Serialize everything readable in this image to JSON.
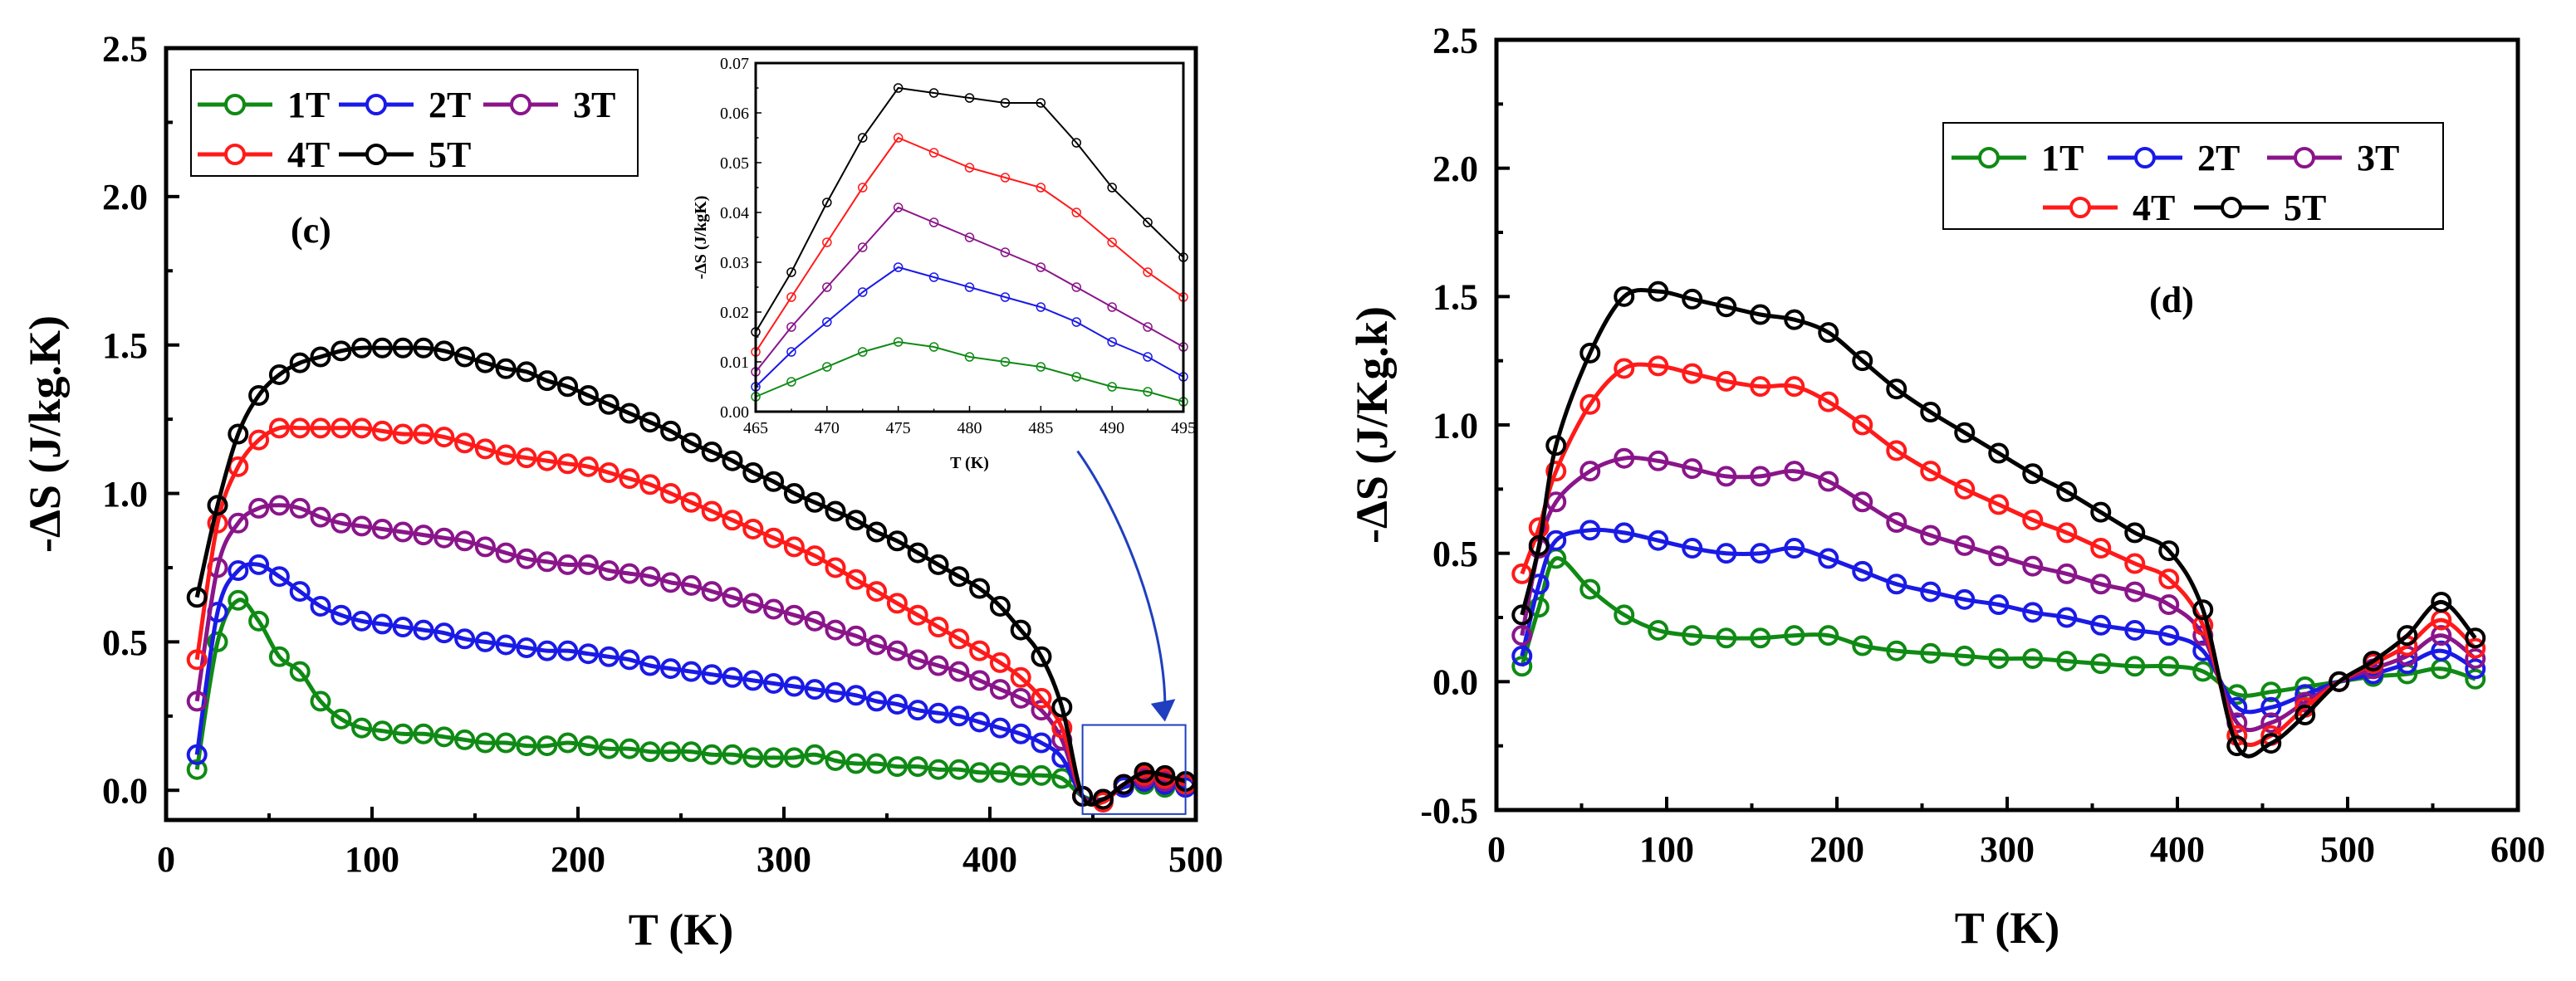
{
  "colors": {
    "1T": "#0f8a14",
    "2T": "#1a1ae6",
    "3T": "#8a158a",
    "4T": "#ff1a1a",
    "5T": "#000000",
    "zoom_box": "#1f3fbf"
  },
  "chart_data": [
    {
      "id": "c",
      "type": "line",
      "panel_label": "(c)",
      "xlabel": "T (K)",
      "ylabel": "-ΔS (J/kg.K)",
      "xlim": [
        0,
        500
      ],
      "ylim": [
        -0.1,
        2.5
      ],
      "xticks": [
        "0",
        "100",
        "200",
        "300",
        "400",
        "500"
      ],
      "yticks": [
        "0.0",
        "0.5",
        "1.0",
        "1.5",
        "2.0",
        "2.5"
      ],
      "legend": [
        "1T",
        "2T",
        "3T",
        "4T",
        "5T"
      ],
      "legend_position": "top-left",
      "x": [
        15,
        25,
        35,
        45,
        55,
        65,
        75,
        85,
        95,
        105,
        115,
        125,
        135,
        145,
        155,
        165,
        175,
        185,
        195,
        205,
        215,
        225,
        235,
        245,
        255,
        265,
        275,
        285,
        295,
        305,
        315,
        325,
        335,
        345,
        355,
        365,
        375,
        385,
        395,
        405,
        415,
        425,
        435,
        445,
        455,
        465,
        475,
        485,
        495
      ],
      "series": [
        {
          "name": "1T",
          "values": [
            0.07,
            0.5,
            0.64,
            0.57,
            0.45,
            0.4,
            0.3,
            0.24,
            0.21,
            0.2,
            0.19,
            0.19,
            0.18,
            0.17,
            0.16,
            0.16,
            0.15,
            0.15,
            0.16,
            0.15,
            0.14,
            0.14,
            0.13,
            0.13,
            0.13,
            0.12,
            0.12,
            0.11,
            0.11,
            0.11,
            0.12,
            0.1,
            0.09,
            0.09,
            0.08,
            0.08,
            0.07,
            0.07,
            0.06,
            0.06,
            0.05,
            0.05,
            0.04,
            -0.02,
            -0.03,
            0.01,
            0.02,
            0.01,
            0.01
          ]
        },
        {
          "name": "2T",
          "values": [
            0.12,
            0.6,
            0.74,
            0.76,
            0.72,
            0.67,
            0.62,
            0.59,
            0.57,
            0.56,
            0.55,
            0.54,
            0.53,
            0.51,
            0.5,
            0.49,
            0.48,
            0.47,
            0.47,
            0.46,
            0.45,
            0.44,
            0.42,
            0.41,
            0.4,
            0.39,
            0.38,
            0.37,
            0.36,
            0.35,
            0.34,
            0.33,
            0.32,
            0.3,
            0.29,
            0.27,
            0.26,
            0.25,
            0.23,
            0.21,
            0.19,
            0.16,
            0.11,
            -0.02,
            -0.03,
            0.01,
            0.03,
            0.02,
            0.01
          ]
        },
        {
          "name": "3T",
          "values": [
            0.3,
            0.75,
            0.9,
            0.95,
            0.96,
            0.95,
            0.92,
            0.9,
            0.89,
            0.88,
            0.87,
            0.86,
            0.85,
            0.84,
            0.82,
            0.8,
            0.78,
            0.77,
            0.76,
            0.76,
            0.74,
            0.73,
            0.72,
            0.7,
            0.69,
            0.67,
            0.65,
            0.63,
            0.61,
            0.59,
            0.57,
            0.54,
            0.52,
            0.49,
            0.47,
            0.44,
            0.42,
            0.4,
            0.37,
            0.34,
            0.31,
            0.27,
            0.17,
            -0.02,
            -0.03,
            0.02,
            0.04,
            0.03,
            0.02
          ]
        },
        {
          "name": "4T",
          "values": [
            0.44,
            0.9,
            1.09,
            1.18,
            1.22,
            1.22,
            1.22,
            1.22,
            1.22,
            1.21,
            1.2,
            1.2,
            1.19,
            1.17,
            1.15,
            1.13,
            1.12,
            1.11,
            1.1,
            1.09,
            1.07,
            1.05,
            1.03,
            1.0,
            0.97,
            0.94,
            0.91,
            0.88,
            0.85,
            0.82,
            0.79,
            0.75,
            0.71,
            0.67,
            0.63,
            0.59,
            0.55,
            0.51,
            0.47,
            0.43,
            0.38,
            0.31,
            0.21,
            -0.02,
            -0.04,
            0.02,
            0.05,
            0.04,
            0.02
          ]
        },
        {
          "name": "5T",
          "values": [
            0.65,
            0.96,
            1.2,
            1.33,
            1.4,
            1.44,
            1.46,
            1.48,
            1.49,
            1.49,
            1.49,
            1.49,
            1.48,
            1.46,
            1.44,
            1.42,
            1.41,
            1.38,
            1.36,
            1.33,
            1.3,
            1.27,
            1.24,
            1.21,
            1.17,
            1.14,
            1.11,
            1.07,
            1.04,
            1.0,
            0.97,
            0.94,
            0.91,
            0.87,
            0.84,
            0.8,
            0.76,
            0.72,
            0.68,
            0.62,
            0.54,
            0.45,
            0.28,
            -0.02,
            -0.03,
            0.02,
            0.06,
            0.05,
            0.03
          ]
        }
      ],
      "inset": {
        "xlabel": "T (K)",
        "ylabel": "-ΔS (J/kgK)",
        "xlim": [
          465,
          495
        ],
        "ylim": [
          0,
          0.07
        ],
        "xticks": [
          "465",
          "470",
          "475",
          "480",
          "485",
          "490",
          "495"
        ],
        "yticks": [
          "0.00",
          "0.01",
          "0.02",
          "0.03",
          "0.04",
          "0.05",
          "0.06",
          "0.07"
        ],
        "x": [
          465,
          467.5,
          470,
          472.5,
          475,
          477.5,
          480,
          482.5,
          485,
          487.5,
          490,
          492.5,
          495
        ],
        "series": [
          {
            "name": "1T",
            "values": [
              0.003,
              0.006,
              0.009,
              0.012,
              0.014,
              0.013,
              0.011,
              0.01,
              0.009,
              0.007,
              0.005,
              0.004,
              0.002
            ]
          },
          {
            "name": "2T",
            "values": [
              0.005,
              0.012,
              0.018,
              0.024,
              0.029,
              0.027,
              0.025,
              0.023,
              0.021,
              0.018,
              0.014,
              0.011,
              0.007
            ]
          },
          {
            "name": "3T",
            "values": [
              0.008,
              0.017,
              0.025,
              0.033,
              0.041,
              0.038,
              0.035,
              0.032,
              0.029,
              0.025,
              0.021,
              0.017,
              0.013
            ]
          },
          {
            "name": "4T",
            "values": [
              0.012,
              0.023,
              0.034,
              0.045,
              0.055,
              0.052,
              0.049,
              0.047,
              0.045,
              0.04,
              0.034,
              0.028,
              0.023
            ]
          },
          {
            "name": "5T",
            "values": [
              0.016,
              0.028,
              0.042,
              0.055,
              0.065,
              0.064,
              0.063,
              0.062,
              0.062,
              0.054,
              0.045,
              0.038,
              0.031
            ]
          }
        ]
      }
    },
    {
      "id": "d",
      "type": "line",
      "panel_label": "(d)",
      "xlabel": "T (K)",
      "ylabel": "-ΔS (J/Kg.k)",
      "xlim": [
        0,
        600
      ],
      "ylim": [
        -0.5,
        2.5
      ],
      "xticks": [
        "0",
        "100",
        "200",
        "300",
        "400",
        "500",
        "600"
      ],
      "yticks": [
        "-0.5",
        "0.0",
        "0.5",
        "1.0",
        "1.5",
        "2.0",
        "2.5"
      ],
      "legend": [
        "1T",
        "2T",
        "3T",
        "4T",
        "5T"
      ],
      "legend_position": "top-right",
      "x": [
        15,
        25,
        35,
        55,
        75,
        95,
        115,
        135,
        155,
        175,
        195,
        215,
        235,
        255,
        275,
        295,
        315,
        335,
        355,
        375,
        395,
        415,
        435,
        455,
        475,
        495,
        515,
        535,
        555,
        575
      ],
      "series": [
        {
          "name": "1T",
          "values": [
            0.06,
            0.29,
            0.48,
            0.36,
            0.26,
            0.2,
            0.18,
            0.17,
            0.17,
            0.18,
            0.18,
            0.14,
            0.12,
            0.11,
            0.1,
            0.09,
            0.09,
            0.08,
            0.07,
            0.06,
            0.06,
            0.04,
            -0.05,
            -0.04,
            -0.02,
            0.0,
            0.02,
            0.03,
            0.05,
            0.01
          ]
        },
        {
          "name": "2T",
          "values": [
            0.1,
            0.38,
            0.55,
            0.59,
            0.58,
            0.55,
            0.52,
            0.5,
            0.5,
            0.52,
            0.48,
            0.43,
            0.38,
            0.35,
            0.32,
            0.3,
            0.27,
            0.25,
            0.22,
            0.2,
            0.18,
            0.12,
            -0.1,
            -0.1,
            -0.05,
            0.0,
            0.03,
            0.07,
            0.12,
            0.05
          ]
        },
        {
          "name": "3T",
          "values": [
            0.18,
            0.52,
            0.7,
            0.82,
            0.87,
            0.86,
            0.83,
            0.8,
            0.8,
            0.82,
            0.78,
            0.7,
            0.62,
            0.57,
            0.53,
            0.49,
            0.45,
            0.42,
            0.38,
            0.35,
            0.3,
            0.18,
            -0.16,
            -0.16,
            -0.08,
            0.0,
            0.05,
            0.1,
            0.18,
            0.09
          ]
        },
        {
          "name": "4T",
          "values": [
            0.42,
            0.6,
            0.82,
            1.08,
            1.22,
            1.23,
            1.2,
            1.17,
            1.15,
            1.15,
            1.09,
            1.0,
            0.9,
            0.82,
            0.75,
            0.69,
            0.63,
            0.58,
            0.52,
            0.46,
            0.4,
            0.22,
            -0.21,
            -0.21,
            -0.1,
            0.0,
            0.07,
            0.14,
            0.24,
            0.13
          ]
        },
        {
          "name": "5T",
          "values": [
            0.26,
            0.53,
            0.92,
            1.28,
            1.5,
            1.52,
            1.49,
            1.46,
            1.43,
            1.41,
            1.36,
            1.25,
            1.14,
            1.05,
            0.97,
            0.89,
            0.81,
            0.74,
            0.66,
            0.58,
            0.51,
            0.28,
            -0.25,
            -0.24,
            -0.13,
            0.0,
            0.08,
            0.18,
            0.31,
            0.17
          ]
        }
      ]
    }
  ]
}
